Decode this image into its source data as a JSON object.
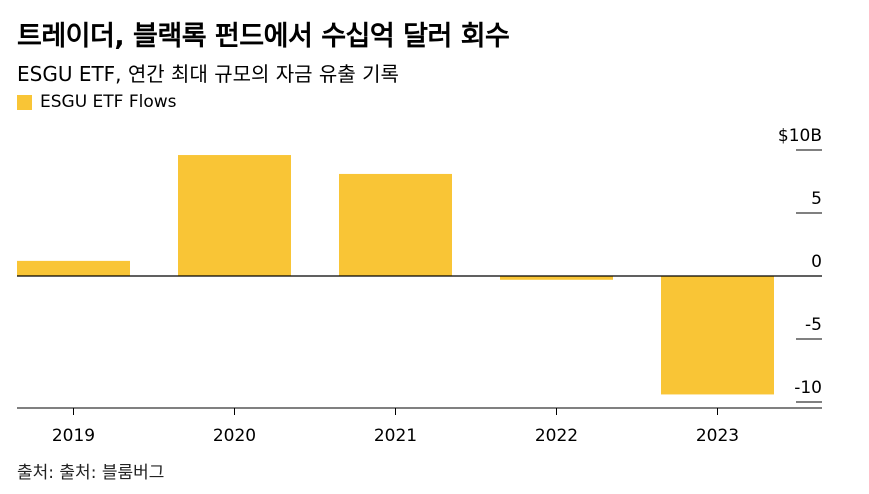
{
  "header": {
    "title": "트레이더, 블랙록 펀드에서 수십억 달러 회수",
    "subtitle": "ESGU ETF, 연간 최대 규모의 자금 유출 기록"
  },
  "source": "출처: 출처: 블룸버그",
  "colors": {
    "bar": "#F9C536",
    "axis": "#000000",
    "tick": "#000000"
  },
  "chart_data": {
    "type": "bar",
    "categories": [
      "2019",
      "2020",
      "2021",
      "2022",
      "2023"
    ],
    "series": [
      {
        "name": "ESGU ETF Flows",
        "values": [
          1.2,
          9.6,
          8.1,
          -0.3,
          -9.4
        ]
      }
    ],
    "ylim": [
      -10.3,
      10
    ],
    "yticks": [
      {
        "value": 10,
        "label": "$10B"
      },
      {
        "value": 5,
        "label": "5"
      },
      {
        "value": 0,
        "label": "0"
      },
      {
        "value": -5,
        "label": "-5"
      },
      {
        "value": -10,
        "label": "-10"
      }
    ],
    "legend_position": "top-left",
    "grid": false
  }
}
